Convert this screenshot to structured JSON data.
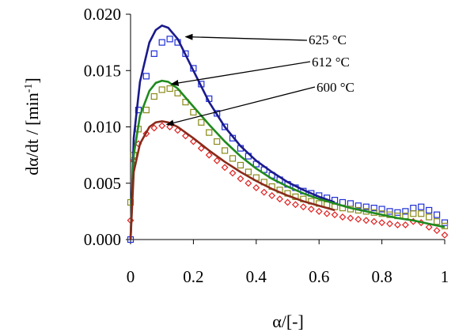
{
  "chart_data": {
    "type": "scatter",
    "xlabel": "α/[-]",
    "ylabel": "dα/dt / [min",
    "ylabel_sup": "-1",
    "ylabel_close": "]",
    "xlim": [
      0,
      1
    ],
    "ylim": [
      0,
      0.02
    ],
    "xticks": [
      "0",
      "0.2",
      "0.4",
      "0.6",
      "0.8",
      "1"
    ],
    "yticks": [
      "0.000",
      "0.005",
      "0.010",
      "0.015",
      "0.020"
    ],
    "grid": false,
    "annotations": [
      {
        "text": "625 °C",
        "series": "625"
      },
      {
        "text": "612 °C",
        "series": "612"
      },
      {
        "text": "600 °C",
        "series": "600"
      }
    ],
    "series": [
      {
        "key": "625",
        "color": "#1f2fd6",
        "line_color": "#1a1a8c",
        "marker": "square",
        "points": [
          [
            0,
            0
          ],
          [
            0.01,
            0.0075
          ],
          [
            0.025,
            0.0115
          ],
          [
            0.05,
            0.0145
          ],
          [
            0.075,
            0.0165
          ],
          [
            0.1,
            0.0175
          ],
          [
            0.125,
            0.0178
          ],
          [
            0.15,
            0.0175
          ],
          [
            0.175,
            0.0165
          ],
          [
            0.2,
            0.0152
          ],
          [
            0.225,
            0.0138
          ],
          [
            0.25,
            0.0125
          ],
          [
            0.275,
            0.0112
          ],
          [
            0.3,
            0.01
          ],
          [
            0.325,
            0.009
          ],
          [
            0.35,
            0.0081
          ],
          [
            0.375,
            0.0074
          ],
          [
            0.4,
            0.0067
          ],
          [
            0.425,
            0.0062
          ],
          [
            0.45,
            0.0057
          ],
          [
            0.475,
            0.0053
          ],
          [
            0.5,
            0.0049
          ],
          [
            0.525,
            0.0046
          ],
          [
            0.55,
            0.0043
          ],
          [
            0.575,
            0.0041
          ],
          [
            0.6,
            0.0039
          ],
          [
            0.625,
            0.0037
          ],
          [
            0.65,
            0.0035
          ],
          [
            0.675,
            0.0033
          ],
          [
            0.7,
            0.0032
          ],
          [
            0.725,
            0.003
          ],
          [
            0.75,
            0.0029
          ],
          [
            0.775,
            0.0028
          ],
          [
            0.8,
            0.0027
          ],
          [
            0.825,
            0.0025
          ],
          [
            0.85,
            0.0024
          ],
          [
            0.875,
            0.0025
          ],
          [
            0.9,
            0.0028
          ],
          [
            0.925,
            0.0029
          ],
          [
            0.95,
            0.0026
          ],
          [
            0.975,
            0.0022
          ],
          [
            1.0,
            0.0015
          ]
        ],
        "fit": [
          [
            0,
            0
          ],
          [
            0.01,
            0.009
          ],
          [
            0.03,
            0.014
          ],
          [
            0.06,
            0.0175
          ],
          [
            0.08,
            0.0186
          ],
          [
            0.1,
            0.019
          ],
          [
            0.12,
            0.0188
          ],
          [
            0.15,
            0.0178
          ],
          [
            0.2,
            0.015
          ],
          [
            0.25,
            0.0122
          ],
          [
            0.3,
            0.01
          ],
          [
            0.35,
            0.0083
          ],
          [
            0.4,
            0.007
          ],
          [
            0.45,
            0.006
          ],
          [
            0.5,
            0.0051
          ],
          [
            0.55,
            0.0044
          ],
          [
            0.6,
            0.0038
          ],
          [
            0.65,
            0.0033
          ]
        ]
      },
      {
        "key": "612",
        "color": "#8a8a1a",
        "line_color": "#1f8a1f",
        "marker": "square",
        "points": [
          [
            0,
            0.0033
          ],
          [
            0.01,
            0.0075
          ],
          [
            0.025,
            0.0098
          ],
          [
            0.05,
            0.0115
          ],
          [
            0.075,
            0.0127
          ],
          [
            0.1,
            0.0133
          ],
          [
            0.125,
            0.0134
          ],
          [
            0.15,
            0.013
          ],
          [
            0.175,
            0.0122
          ],
          [
            0.2,
            0.0113
          ],
          [
            0.225,
            0.0104
          ],
          [
            0.25,
            0.0095
          ],
          [
            0.275,
            0.0087
          ],
          [
            0.3,
            0.0079
          ],
          [
            0.325,
            0.0072
          ],
          [
            0.35,
            0.0066
          ],
          [
            0.375,
            0.006
          ],
          [
            0.4,
            0.0055
          ],
          [
            0.425,
            0.0051
          ],
          [
            0.45,
            0.0047
          ],
          [
            0.475,
            0.0044
          ],
          [
            0.5,
            0.0041
          ],
          [
            0.525,
            0.0038
          ],
          [
            0.55,
            0.0036
          ],
          [
            0.575,
            0.0034
          ],
          [
            0.6,
            0.0032
          ],
          [
            0.625,
            0.0031
          ],
          [
            0.65,
            0.0029
          ],
          [
            0.675,
            0.0028
          ],
          [
            0.7,
            0.0027
          ],
          [
            0.725,
            0.0026
          ],
          [
            0.75,
            0.0025
          ],
          [
            0.775,
            0.0024
          ],
          [
            0.8,
            0.0023
          ],
          [
            0.825,
            0.0022
          ],
          [
            0.85,
            0.0021
          ],
          [
            0.875,
            0.0021
          ],
          [
            0.9,
            0.0023
          ],
          [
            0.925,
            0.0023
          ],
          [
            0.95,
            0.002
          ],
          [
            0.975,
            0.0016
          ],
          [
            1.0,
            0.0012
          ]
        ],
        "fit": [
          [
            0,
            0
          ],
          [
            0.01,
            0.0075
          ],
          [
            0.03,
            0.011
          ],
          [
            0.06,
            0.0132
          ],
          [
            0.08,
            0.0139
          ],
          [
            0.1,
            0.0141
          ],
          [
            0.12,
            0.014
          ],
          [
            0.15,
            0.0134
          ],
          [
            0.2,
            0.0118
          ],
          [
            0.25,
            0.0102
          ],
          [
            0.3,
            0.0087
          ],
          [
            0.35,
            0.0074
          ],
          [
            0.4,
            0.0063
          ],
          [
            0.45,
            0.0054
          ],
          [
            0.5,
            0.0047
          ],
          [
            0.55,
            0.0041
          ],
          [
            0.6,
            0.0036
          ],
          [
            0.65,
            0.0032
          ],
          [
            0.7,
            0.0028
          ],
          [
            0.75,
            0.0025
          ],
          [
            0.8,
            0.0022
          ],
          [
            0.85,
            0.0019
          ],
          [
            0.9,
            0.0017
          ],
          [
            0.95,
            0.0014
          ],
          [
            1.0,
            0.0011
          ]
        ]
      },
      {
        "key": "600",
        "color": "#e02020",
        "line_color": "#8a2a1a",
        "marker": "diamond",
        "points": [
          [
            0,
            0.0017
          ],
          [
            0.01,
            0.007
          ],
          [
            0.025,
            0.0085
          ],
          [
            0.05,
            0.0094
          ],
          [
            0.075,
            0.0099
          ],
          [
            0.1,
            0.0101
          ],
          [
            0.125,
            0.01
          ],
          [
            0.15,
            0.0097
          ],
          [
            0.175,
            0.0092
          ],
          [
            0.2,
            0.0087
          ],
          [
            0.225,
            0.0081
          ],
          [
            0.25,
            0.0075
          ],
          [
            0.275,
            0.007
          ],
          [
            0.3,
            0.0064
          ],
          [
            0.325,
            0.0059
          ],
          [
            0.35,
            0.0054
          ],
          [
            0.375,
            0.005
          ],
          [
            0.4,
            0.0046
          ],
          [
            0.425,
            0.0042
          ],
          [
            0.45,
            0.0039
          ],
          [
            0.475,
            0.0036
          ],
          [
            0.5,
            0.0033
          ],
          [
            0.525,
            0.0031
          ],
          [
            0.55,
            0.0029
          ],
          [
            0.575,
            0.0027
          ],
          [
            0.6,
            0.0025
          ],
          [
            0.625,
            0.0023
          ],
          [
            0.65,
            0.0022
          ],
          [
            0.675,
            0.002
          ],
          [
            0.7,
            0.0019
          ],
          [
            0.725,
            0.0018
          ],
          [
            0.75,
            0.0017
          ],
          [
            0.775,
            0.0016
          ],
          [
            0.8,
            0.0015
          ],
          [
            0.825,
            0.0014
          ],
          [
            0.85,
            0.0013
          ],
          [
            0.875,
            0.0013
          ],
          [
            0.9,
            0.0016
          ],
          [
            0.925,
            0.0015
          ],
          [
            0.95,
            0.0011
          ],
          [
            0.975,
            0.0008
          ],
          [
            1.0,
            0.0004
          ]
        ],
        "fit": [
          [
            0,
            0
          ],
          [
            0.01,
            0.006
          ],
          [
            0.03,
            0.0085
          ],
          [
            0.06,
            0.01
          ],
          [
            0.08,
            0.0104
          ],
          [
            0.1,
            0.0105
          ],
          [
            0.12,
            0.0104
          ],
          [
            0.15,
            0.01
          ],
          [
            0.2,
            0.009
          ],
          [
            0.25,
            0.0079
          ],
          [
            0.3,
            0.0069
          ],
          [
            0.35,
            0.006
          ],
          [
            0.4,
            0.0052
          ],
          [
            0.45,
            0.0045
          ],
          [
            0.5,
            0.0039
          ],
          [
            0.55,
            0.0034
          ],
          [
            0.6,
            0.003
          ],
          [
            0.65,
            0.0026
          ]
        ]
      }
    ]
  }
}
